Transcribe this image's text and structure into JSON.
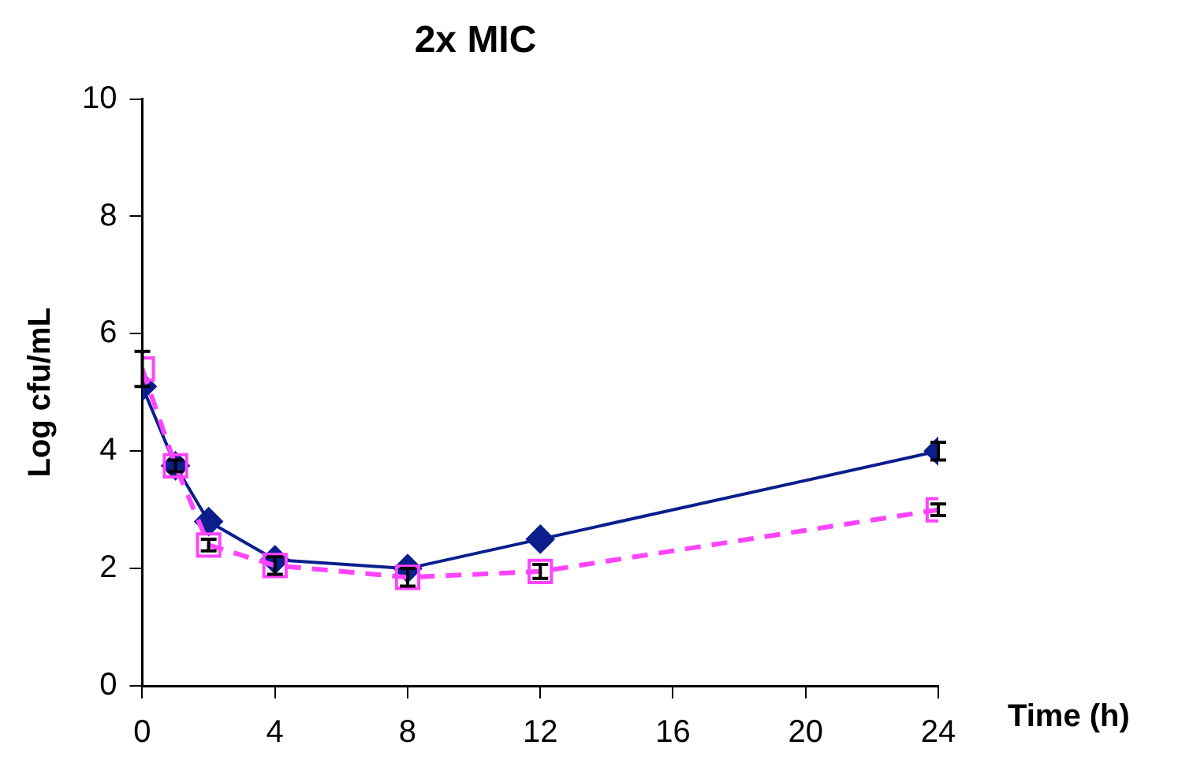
{
  "chart_data": {
    "type": "line",
    "title": "2x MIC",
    "xlabel": "Time (h)",
    "ylabel": "Log cfu/mL",
    "x": [
      0,
      1,
      2,
      4,
      8,
      12,
      24
    ],
    "series": [
      {
        "color": "#0a1e8c",
        "marker": "diamond",
        "line_style": "solid",
        "values": [
          5.1,
          3.75,
          2.8,
          2.15,
          2.0,
          2.5,
          4.0
        ],
        "errors": [
          null,
          null,
          null,
          null,
          null,
          null,
          0.15
        ]
      },
      {
        "color": "#ff44ff",
        "marker": "square",
        "line_style": "dashed",
        "values": [
          5.4,
          3.75,
          2.4,
          2.05,
          1.85,
          1.95,
          3.0
        ],
        "errors": [
          0.3,
          0.1,
          0.1,
          0.15,
          0.15,
          0.12,
          0.1
        ]
      }
    ],
    "xlim": [
      0,
      24
    ],
    "xticks": [
      0,
      4,
      8,
      12,
      16,
      20,
      24
    ],
    "ylim": [
      0,
      10
    ],
    "yticks": [
      0,
      2,
      4,
      6,
      8,
      10
    ],
    "grid": false,
    "legend": false
  }
}
